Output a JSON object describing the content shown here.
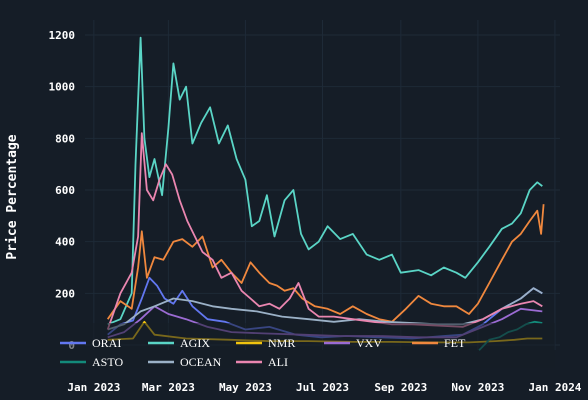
{
  "chart_data": {
    "type": "line",
    "ylabel": "Price Percentage",
    "xlabel": "",
    "ylim": [
      0,
      1200
    ],
    "xlim": [
      "2022-12-25",
      "2024-01-05"
    ],
    "y_ticks": [
      0,
      200,
      400,
      600,
      800,
      1000,
      1200
    ],
    "x_ticks": [
      {
        "date": "2023-01-01",
        "label": "Jan 2023"
      },
      {
        "date": "2023-03-01",
        "label": "Mar 2023"
      },
      {
        "date": "2023-05-01",
        "label": "May 2023"
      },
      {
        "date": "2023-07-01",
        "label": "Jul 2023"
      },
      {
        "date": "2023-09-01",
        "label": "Sep 2023"
      },
      {
        "date": "2023-11-01",
        "label": "Nov 2023"
      },
      {
        "date": "2024-01-01",
        "label": "Jan 2024"
      }
    ],
    "grid": true,
    "legend_position": "bottom",
    "series": [
      {
        "name": "ORAI",
        "color": "#6277f0",
        "points": [
          [
            "2023-01-12",
            40
          ],
          [
            "2023-01-22",
            80
          ],
          [
            "2023-02-01",
            95
          ],
          [
            "2023-02-08",
            180
          ],
          [
            "2023-02-14",
            260
          ],
          [
            "2023-02-20",
            230
          ],
          [
            "2023-02-26",
            180
          ],
          [
            "2023-03-05",
            160
          ],
          [
            "2023-03-12",
            210
          ],
          [
            "2023-03-20",
            150
          ],
          [
            "2023-04-01",
            100
          ],
          [
            "2023-04-15",
            90
          ],
          [
            "2023-05-01",
            60
          ],
          [
            "2023-05-20",
            70
          ],
          [
            "2023-06-10",
            40
          ],
          [
            "2023-06-30",
            30
          ],
          [
            "2023-07-20",
            35
          ],
          [
            "2023-08-15",
            30
          ],
          [
            "2023-09-10",
            25
          ],
          [
            "2023-10-05",
            35
          ],
          [
            "2023-10-20",
            40
          ],
          [
            "2023-11-05",
            80
          ],
          [
            "2023-11-20",
            140
          ],
          [
            "2023-12-05",
            180
          ],
          [
            "2023-12-15",
            220
          ],
          [
            "2023-12-22",
            200
          ]
        ]
      },
      {
        "name": "AGIX",
        "color": "#5ad5c6",
        "points": [
          [
            "2023-01-12",
            80
          ],
          [
            "2023-01-22",
            100
          ],
          [
            "2023-01-31",
            200
          ],
          [
            "2023-02-03",
            700
          ],
          [
            "2023-02-07",
            1190
          ],
          [
            "2023-02-10",
            800
          ],
          [
            "2023-02-14",
            650
          ],
          [
            "2023-02-18",
            720
          ],
          [
            "2023-02-24",
            580
          ],
          [
            "2023-03-01",
            840
          ],
          [
            "2023-03-05",
            1090
          ],
          [
            "2023-03-10",
            950
          ],
          [
            "2023-03-15",
            1000
          ],
          [
            "2023-03-20",
            780
          ],
          [
            "2023-03-27",
            860
          ],
          [
            "2023-04-03",
            920
          ],
          [
            "2023-04-10",
            780
          ],
          [
            "2023-04-17",
            850
          ],
          [
            "2023-04-24",
            720
          ],
          [
            "2023-05-01",
            640
          ],
          [
            "2023-05-06",
            460
          ],
          [
            "2023-05-12",
            480
          ],
          [
            "2023-05-18",
            580
          ],
          [
            "2023-05-24",
            420
          ],
          [
            "2023-06-01",
            560
          ],
          [
            "2023-06-08",
            600
          ],
          [
            "2023-06-14",
            430
          ],
          [
            "2023-06-20",
            370
          ],
          [
            "2023-06-28",
            400
          ],
          [
            "2023-07-05",
            460
          ],
          [
            "2023-07-15",
            410
          ],
          [
            "2023-07-25",
            430
          ],
          [
            "2023-08-05",
            350
          ],
          [
            "2023-08-15",
            330
          ],
          [
            "2023-08-25",
            350
          ],
          [
            "2023-09-01",
            280
          ],
          [
            "2023-09-15",
            290
          ],
          [
            "2023-09-25",
            270
          ],
          [
            "2023-10-05",
            300
          ],
          [
            "2023-10-15",
            280
          ],
          [
            "2023-10-22",
            260
          ],
          [
            "2023-11-01",
            320
          ],
          [
            "2023-11-10",
            380
          ],
          [
            "2023-11-20",
            450
          ],
          [
            "2023-11-28",
            470
          ],
          [
            "2023-12-05",
            510
          ],
          [
            "2023-12-12",
            600
          ],
          [
            "2023-12-18",
            630
          ],
          [
            "2023-12-22",
            615
          ]
        ]
      },
      {
        "name": "NMR",
        "color": "#f1c40f",
        "points": [
          [
            "2023-01-12",
            20
          ],
          [
            "2023-02-01",
            25
          ],
          [
            "2023-02-10",
            90
          ],
          [
            "2023-02-18",
            40
          ],
          [
            "2023-03-15",
            25
          ],
          [
            "2023-04-20",
            20
          ],
          [
            "2023-05-20",
            15
          ],
          [
            "2023-06-20",
            15
          ],
          [
            "2023-07-25",
            12
          ],
          [
            "2023-08-25",
            12
          ],
          [
            "2023-09-25",
            10
          ],
          [
            "2023-10-25",
            10
          ],
          [
            "2023-11-15",
            15
          ],
          [
            "2023-11-30",
            20
          ],
          [
            "2023-12-10",
            25
          ],
          [
            "2023-12-22",
            25
          ]
        ]
      },
      {
        "name": "VXV",
        "color": "#9b6bd3",
        "points": [
          [
            "2023-01-12",
            30
          ],
          [
            "2023-01-25",
            50
          ],
          [
            "2023-02-07",
            100
          ],
          [
            "2023-02-18",
            150
          ],
          [
            "2023-03-01",
            120
          ],
          [
            "2023-03-15",
            100
          ],
          [
            "2023-04-01",
            70
          ],
          [
            "2023-04-20",
            50
          ],
          [
            "2023-05-15",
            45
          ],
          [
            "2023-06-15",
            40
          ],
          [
            "2023-07-15",
            35
          ],
          [
            "2023-08-15",
            35
          ],
          [
            "2023-09-15",
            30
          ],
          [
            "2023-10-15",
            30
          ],
          [
            "2023-11-05",
            70
          ],
          [
            "2023-11-20",
            100
          ],
          [
            "2023-12-05",
            140
          ],
          [
            "2023-12-22",
            130
          ]
        ]
      },
      {
        "name": "FET",
        "color": "#f0883e",
        "points": [
          [
            "2023-01-12",
            100
          ],
          [
            "2023-01-22",
            170
          ],
          [
            "2023-01-31",
            140
          ],
          [
            "2023-02-05",
            300
          ],
          [
            "2023-02-08",
            440
          ],
          [
            "2023-02-12",
            260
          ],
          [
            "2023-02-18",
            340
          ],
          [
            "2023-02-25",
            330
          ],
          [
            "2023-03-05",
            400
          ],
          [
            "2023-03-12",
            410
          ],
          [
            "2023-03-20",
            380
          ],
          [
            "2023-03-28",
            420
          ],
          [
            "2023-04-05",
            300
          ],
          [
            "2023-04-12",
            330
          ],
          [
            "2023-04-20",
            280
          ],
          [
            "2023-04-28",
            240
          ],
          [
            "2023-05-05",
            320
          ],
          [
            "2023-05-12",
            280
          ],
          [
            "2023-05-20",
            240
          ],
          [
            "2023-05-26",
            230
          ],
          [
            "2023-06-01",
            210
          ],
          [
            "2023-06-08",
            220
          ],
          [
            "2023-06-15",
            180
          ],
          [
            "2023-06-25",
            150
          ],
          [
            "2023-07-05",
            140
          ],
          [
            "2023-07-15",
            120
          ],
          [
            "2023-07-25",
            150
          ],
          [
            "2023-08-05",
            120
          ],
          [
            "2023-08-15",
            100
          ],
          [
            "2023-08-25",
            90
          ],
          [
            "2023-09-05",
            140
          ],
          [
            "2023-09-15",
            190
          ],
          [
            "2023-09-25",
            160
          ],
          [
            "2023-10-05",
            150
          ],
          [
            "2023-10-15",
            150
          ],
          [
            "2023-10-25",
            120
          ],
          [
            "2023-11-01",
            160
          ],
          [
            "2023-11-10",
            240
          ],
          [
            "2023-11-20",
            330
          ],
          [
            "2023-11-28",
            400
          ],
          [
            "2023-12-05",
            430
          ],
          [
            "2023-12-12",
            480
          ],
          [
            "2023-12-18",
            520
          ],
          [
            "2023-12-21",
            430
          ],
          [
            "2023-12-23",
            545
          ]
        ]
      },
      {
        "name": "ASTO",
        "color": "#138a7a",
        "points": [
          [
            "2023-11-02",
            -20
          ],
          [
            "2023-11-10",
            20
          ],
          [
            "2023-11-18",
            30
          ],
          [
            "2023-11-25",
            50
          ],
          [
            "2023-12-02",
            60
          ],
          [
            "2023-12-09",
            80
          ],
          [
            "2023-12-16",
            90
          ],
          [
            "2023-12-22",
            85
          ]
        ]
      },
      {
        "name": "OCEAN",
        "color": "#9bb1c7",
        "points": [
          [
            "2023-01-12",
            60
          ],
          [
            "2023-01-25",
            80
          ],
          [
            "2023-02-07",
            130
          ],
          [
            "2023-02-18",
            150
          ],
          [
            "2023-03-05",
            180
          ],
          [
            "2023-03-20",
            170
          ],
          [
            "2023-04-05",
            150
          ],
          [
            "2023-04-20",
            140
          ],
          [
            "2023-05-10",
            130
          ],
          [
            "2023-05-30",
            110
          ],
          [
            "2023-06-20",
            100
          ],
          [
            "2023-07-10",
            90
          ],
          [
            "2023-07-30",
            100
          ],
          [
            "2023-08-20",
            90
          ],
          [
            "2023-09-10",
            85
          ],
          [
            "2023-09-30",
            80
          ],
          [
            "2023-10-20",
            80
          ],
          [
            "2023-11-05",
            100
          ],
          [
            "2023-11-20",
            140
          ],
          [
            "2023-12-05",
            180
          ],
          [
            "2023-12-15",
            220
          ],
          [
            "2023-12-22",
            200
          ]
        ]
      },
      {
        "name": "ALI",
        "color": "#ea86b0",
        "points": [
          [
            "2023-01-12",
            60
          ],
          [
            "2023-01-22",
            200
          ],
          [
            "2023-01-31",
            280
          ],
          [
            "2023-02-05",
            420
          ],
          [
            "2023-02-08",
            820
          ],
          [
            "2023-02-12",
            600
          ],
          [
            "2023-02-17",
            560
          ],
          [
            "2023-02-22",
            640
          ],
          [
            "2023-02-27",
            700
          ],
          [
            "2023-03-04",
            660
          ],
          [
            "2023-03-10",
            560
          ],
          [
            "2023-03-16",
            480
          ],
          [
            "2023-03-22",
            420
          ],
          [
            "2023-03-28",
            360
          ],
          [
            "2023-04-05",
            330
          ],
          [
            "2023-04-12",
            260
          ],
          [
            "2023-04-20",
            280
          ],
          [
            "2023-04-28",
            210
          ],
          [
            "2023-05-05",
            180
          ],
          [
            "2023-05-12",
            150
          ],
          [
            "2023-05-20",
            160
          ],
          [
            "2023-05-28",
            140
          ],
          [
            "2023-06-05",
            180
          ],
          [
            "2023-06-12",
            240
          ],
          [
            "2023-06-20",
            140
          ],
          [
            "2023-06-28",
            110
          ],
          [
            "2023-07-10",
            110
          ],
          [
            "2023-07-25",
            100
          ],
          [
            "2023-08-10",
            90
          ],
          [
            "2023-08-25",
            80
          ],
          [
            "2023-09-10",
            80
          ],
          [
            "2023-09-30",
            75
          ],
          [
            "2023-10-20",
            70
          ],
          [
            "2023-11-05",
            100
          ],
          [
            "2023-11-20",
            140
          ],
          [
            "2023-12-05",
            160
          ],
          [
            "2023-12-15",
            170
          ],
          [
            "2023-12-22",
            150
          ]
        ]
      }
    ]
  }
}
